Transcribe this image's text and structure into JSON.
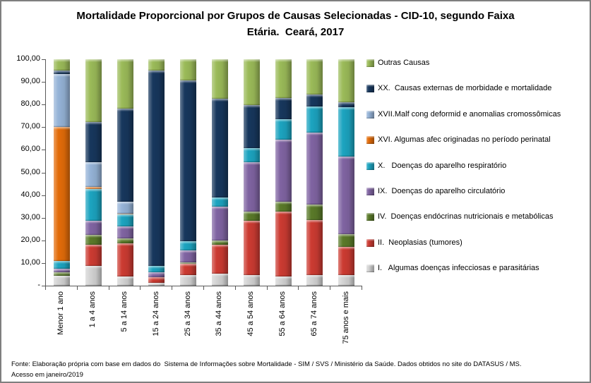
{
  "title": {
    "line1": "Mortalidade Proporcional por Grupos de Causas Selecionadas - CID-10, segundo Faixa",
    "line2": "Etária.  Ceará, 2017"
  },
  "footer": {
    "line1": "Fonte: Elaboração própria com base em dados do  Sistema de Informações sobre Mortalidade - SIM / SVS / Ministério da Saúde. Dados obtidos no site do DATASUS / MS.",
    "line2": "Acesso em janeiro/2019"
  },
  "chart_data": {
    "type": "bar",
    "stacked": true,
    "unit": "percent",
    "title": "Mortalidade Proporcional por Grupos de Causas Selecionadas - CID-10, segundo Faixa Etária.  Ceará, 2017",
    "ylim": [
      0,
      100
    ],
    "grid": false,
    "legend_position": "right",
    "y_tick_labels": [
      "100,00",
      "90,00",
      "80,00",
      "70,00",
      "60,00",
      "50,00",
      "40,00",
      "30,00",
      "20,00",
      "10,00",
      "-"
    ],
    "categories": [
      "Menor 1 ano",
      "1 a 4 anos",
      "5 a 14 anos",
      "15 a 24 anos",
      "25 a 34 anos",
      "35 a 44 anos",
      "45 a 54 anos",
      "55 a 64 anos",
      "65 a 74 anos",
      "75 anos e mais"
    ],
    "series": [
      {
        "name": "I.   Algumas doenças infecciosas e parasitárias",
        "color": "#D3D3D3",
        "values": [
          4.5,
          8.8,
          4.2,
          1.4,
          4.7,
          5.2,
          4.7,
          4.2,
          4.7,
          4.7
        ]
      },
      {
        "name": "II.  Neoplasias (tumores)",
        "color": "#CC3B32",
        "values": [
          0,
          9.3,
          14.5,
          2.3,
          5.1,
          13.0,
          23.9,
          28.5,
          24.4,
          12.5
        ]
      },
      {
        "name": "IV.  Doenças endócrinas nutricionais e metabólicas",
        "color": "#5A7A29",
        "values": [
          1.5,
          4.2,
          2.1,
          0,
          0.5,
          1.6,
          4.1,
          4.4,
          6.8,
          5.4
        ]
      },
      {
        "name": "IX.  Doenças do aparelho circulatório",
        "color": "#8064A2",
        "values": [
          1.5,
          6.3,
          5.4,
          2.3,
          5.2,
          15.0,
          21.7,
          27.3,
          31.7,
          34.3
        ]
      },
      {
        "name": "X.   Doenças do aparelho respiratório",
        "color": "#1CA4C0",
        "values": [
          3.5,
          14.0,
          5.2,
          2.6,
          4.1,
          4.2,
          6.4,
          9.1,
          11.7,
          21.8
        ]
      },
      {
        "name": "XVI. Algumas afec originadas no período perinatal",
        "color": "#E36C09",
        "values": [
          59.0,
          1.0,
          0.5,
          0,
          0,
          0,
          0,
          0,
          0,
          0
        ]
      },
      {
        "name": "XVII.Malf cong deformid e anomalias cromossômicas",
        "color": "#95B3D7",
        "values": [
          23.5,
          10.9,
          5.2,
          0,
          0,
          0,
          0,
          0,
          0,
          0
        ]
      },
      {
        "name": "XX.  Causas externas de morbidade e mortalidade",
        "color": "#17375D",
        "values": [
          1.5,
          17.9,
          41.2,
          86.5,
          71.0,
          43.6,
          19.0,
          9.3,
          5.2,
          2.4
        ]
      },
      {
        "name": "Outras Causas",
        "color": "#9BBB59",
        "values": [
          5.0,
          27.6,
          21.7,
          4.9,
          9.4,
          17.4,
          20.2,
          17.2,
          15.5,
          18.9
        ]
      }
    ]
  }
}
